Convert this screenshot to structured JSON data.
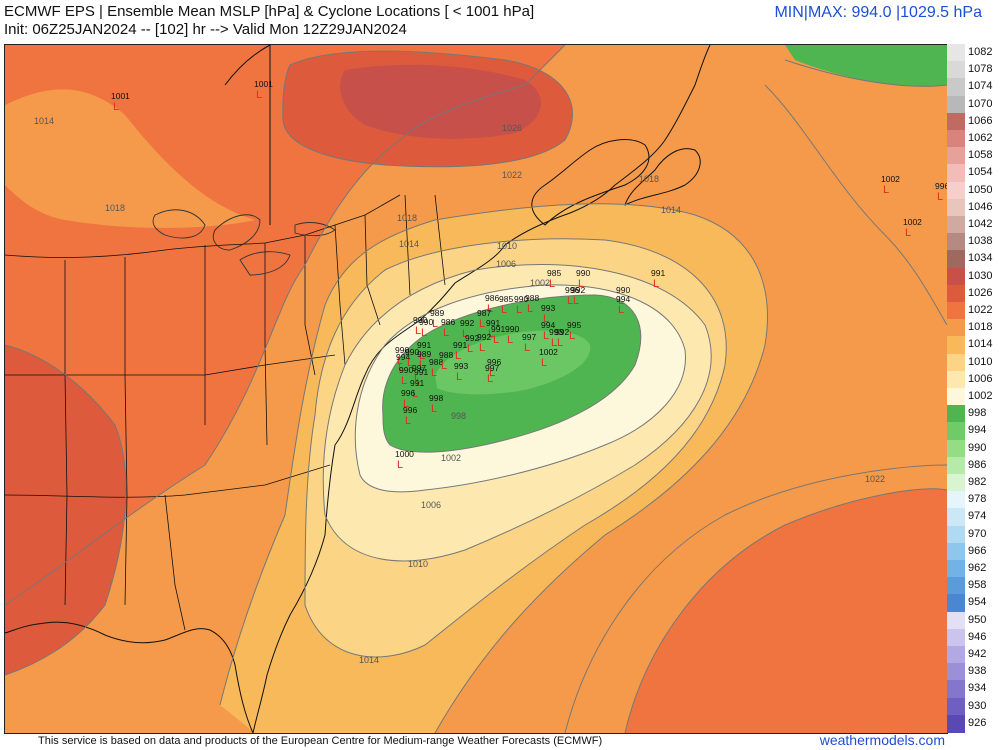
{
  "header": {
    "title": "ECMWF EPS | Ensemble Mean MSLP [hPa] & Cyclone Locations [ < 1001 hPa]",
    "init": "Init: 06Z25JAN2024 -- [102] hr --> Valid Mon 12Z29JAN2024",
    "minmax": "MIN|MAX: 994.0 |1029.5 hPa"
  },
  "footer": {
    "credit": "This service is based on data and products of the European Centre for Medium-range Weather Forecasts (ECMWF)",
    "brand": "weathermodels.com"
  },
  "colors": {
    "c1030": "#c8504a",
    "c1026": "#de5a3c",
    "c1022": "#ef7440",
    "c1018": "#f59a4a",
    "c1014": "#f8b95a",
    "c1010": "#fbd585",
    "c1006": "#fde9b0",
    "c1002": "#fdf7dc",
    "c998": "#8fd77e",
    "c994": "#4fb550",
    "c990": "#35a046",
    "contour": "#777777",
    "low": "#e03020"
  },
  "colorbar": [
    {
      "label": "1082",
      "color": "#e6e6e6"
    },
    {
      "label": "1078",
      "color": "#d9d9d9"
    },
    {
      "label": "1074",
      "color": "#c9c9c9"
    },
    {
      "label": "1070",
      "color": "#b8b8b8"
    },
    {
      "label": "1066",
      "color": "#c06a64"
    },
    {
      "label": "1062",
      "color": "#d8847c"
    },
    {
      "label": "1058",
      "color": "#e6a19a"
    },
    {
      "label": "1054",
      "color": "#f2bcb8"
    },
    {
      "label": "1050",
      "color": "#f6cfcc"
    },
    {
      "label": "1046",
      "color": "#e8c6bc"
    },
    {
      "label": "1042",
      "color": "#cfaaa0"
    },
    {
      "label": "1038",
      "color": "#b48a82"
    },
    {
      "label": "1034",
      "color": "#9e6a60"
    },
    {
      "label": "1030",
      "color": "#c8504a"
    },
    {
      "label": "1026",
      "color": "#de5a3c"
    },
    {
      "label": "1022",
      "color": "#ef7440"
    },
    {
      "label": "1018",
      "color": "#f59a4a"
    },
    {
      "label": "1014",
      "color": "#f8b95a"
    },
    {
      "label": "1010",
      "color": "#fbd585"
    },
    {
      "label": "1006",
      "color": "#fde9b0"
    },
    {
      "label": "1002",
      "color": "#fdf7dc"
    },
    {
      "label": "998",
      "color": "#4fb550"
    },
    {
      "label": "994",
      "color": "#6fcb67"
    },
    {
      "label": "990",
      "color": "#94dc86"
    },
    {
      "label": "986",
      "color": "#b6e9aa"
    },
    {
      "label": "982",
      "color": "#d8f4d0"
    },
    {
      "label": "978",
      "color": "#e6f4fb"
    },
    {
      "label": "974",
      "color": "#cce8f7"
    },
    {
      "label": "970",
      "color": "#b0daf2"
    },
    {
      "label": "966",
      "color": "#8fc6ec"
    },
    {
      "label": "962",
      "color": "#72b2e6"
    },
    {
      "label": "958",
      "color": "#5a9bdc"
    },
    {
      "label": "954",
      "color": "#4a86d2"
    },
    {
      "label": "950",
      "color": "#e4e0f4"
    },
    {
      "label": "946",
      "color": "#cbc4ec"
    },
    {
      "label": "942",
      "color": "#b3a9e2"
    },
    {
      "label": "938",
      "color": "#9b8fd8"
    },
    {
      "label": "934",
      "color": "#8576cd"
    },
    {
      "label": "930",
      "color": "#6f5fc2"
    },
    {
      "label": "926",
      "color": "#5a48b5"
    }
  ],
  "contour_labels": [
    "1026",
    "1022",
    "1018",
    "1018",
    "1014",
    "1014",
    "1010",
    "1006",
    "1002",
    "998",
    "1014",
    "1018",
    "1022",
    "1006",
    "1010",
    "1014",
    "1002"
  ],
  "lows": [
    {
      "v": "1001"
    },
    {
      "v": "1001"
    },
    {
      "v": "1002"
    },
    {
      "v": "996"
    },
    {
      "v": "1002"
    },
    {
      "v": "985"
    },
    {
      "v": "990"
    },
    {
      "v": "991"
    },
    {
      "v": "996"
    },
    {
      "v": "990"
    },
    {
      "v": "994"
    },
    {
      "v": "992"
    },
    {
      "v": "986"
    },
    {
      "v": "988"
    },
    {
      "v": "990"
    },
    {
      "v": "993"
    },
    {
      "v": "994"
    },
    {
      "v": "995"
    },
    {
      "v": "993"
    },
    {
      "v": "992"
    },
    {
      "v": "997"
    },
    {
      "v": "1002"
    },
    {
      "v": "989"
    },
    {
      "v": "987"
    },
    {
      "v": "990"
    },
    {
      "v": "986"
    },
    {
      "v": "992"
    },
    {
      "v": "991"
    },
    {
      "v": "992"
    },
    {
      "v": "991"
    },
    {
      "v": "992"
    },
    {
      "v": "990"
    },
    {
      "v": "991"
    },
    {
      "v": "990"
    },
    {
      "v": "989"
    },
    {
      "v": "994"
    },
    {
      "v": "988"
    },
    {
      "v": "993"
    },
    {
      "v": "990"
    },
    {
      "v": "996"
    },
    {
      "v": "997"
    },
    {
      "v": "991"
    },
    {
      "v": "991"
    },
    {
      "v": "998"
    },
    {
      "v": "996"
    },
    {
      "v": "997"
    },
    {
      "v": "996"
    },
    {
      "v": "1000"
    },
    {
      "v": "990"
    },
    {
      "v": "988"
    },
    {
      "v": "991"
    },
    {
      "v": "985"
    },
    {
      "v": "990"
    }
  ]
}
